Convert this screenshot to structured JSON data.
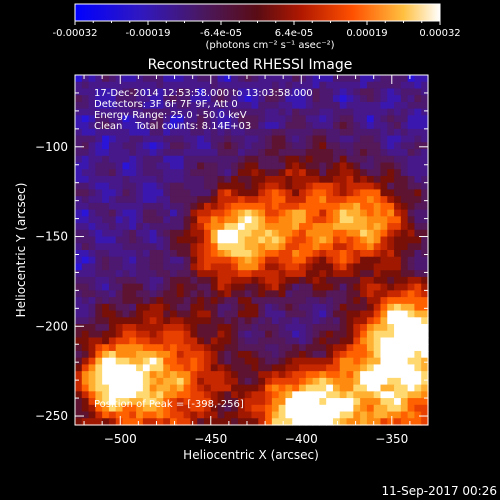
{
  "colorbar": {
    "tick_labels": [
      "-0.00032",
      "-0.00019",
      "-6.4e-05",
      "6.4e-05",
      "0.00019",
      "0.00032"
    ],
    "unit_label": "(photons cm⁻² s⁻¹ asec⁻²)"
  },
  "plot": {
    "title": "Reconstructed RHESSI Image",
    "info_lines": [
      "17-Dec-2014 12:53:58.000 to 13:03:58.000",
      "Detectors: 3F 6F 7F 9F, Att 0",
      "Energy Range: 25.0 - 50.0 keV",
      "Clean    Total counts: 8.14E+03"
    ],
    "peak_label": "Position of Peak = [-398,-256]",
    "footer_timestamp": "11-Sep-2017 00:26"
  },
  "chart_data": {
    "type": "heatmap",
    "title": "Reconstructed RHESSI Image",
    "xlabel": "Heliocentric X (arcsec)",
    "ylabel": "Heliocentric Y (arcsec)",
    "xlim": [
      -525,
      -330
    ],
    "ylim": [
      -255,
      -60
    ],
    "x_ticks": [
      -500,
      -450,
      -400,
      -350
    ],
    "y_ticks": [
      -250,
      -200,
      -150,
      -100
    ],
    "x_tick_labels": [
      "−500",
      "−450",
      "−400",
      "−350"
    ],
    "y_tick_labels": [
      "−250",
      "−200",
      "−150",
      "−100"
    ],
    "colorbar_range": [
      -0.00032,
      0.00032
    ],
    "colormap": [
      "#0000ff",
      "#3a10a8",
      "#4a1860",
      "#6a1010",
      "#c02000",
      "#ff5a00",
      "#ffb030",
      "#ffffff"
    ],
    "peak_position": [
      -398,
      -256
    ]
  }
}
